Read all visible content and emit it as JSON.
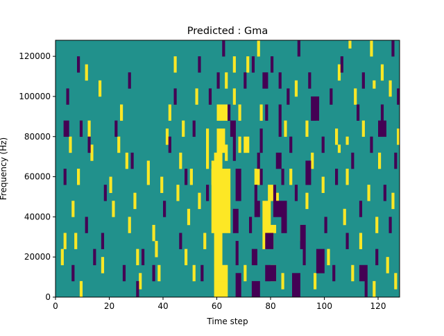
{
  "chart_data": {
    "type": "heatmap",
    "title": "Predicted : Gma",
    "xlabel": "Time step",
    "ylabel": "Frequency (Hz)",
    "xlim": [
      0,
      128
    ],
    "ylim": [
      0,
      128000
    ],
    "x_ticks": [
      0,
      20,
      40,
      60,
      80,
      100,
      120
    ],
    "x_tick_labels": [
      "0",
      "20",
      "40",
      "60",
      "80",
      "100",
      "120"
    ],
    "y_ticks": [
      0,
      20000,
      40000,
      60000,
      80000,
      100000,
      120000
    ],
    "y_tick_labels": [
      "0",
      "20000",
      "40000",
      "60000",
      "80000",
      "100000",
      "120000"
    ],
    "n_time_steps": 128,
    "n_freq_bins": 32,
    "colormap": "viridis",
    "legend": "none",
    "grid": false,
    "class_colors": {
      "background": "#21918c",
      "positive": "#fde725",
      "negative": "#440154"
    },
    "note_encoding": "cells listed as [time_step_start, time_step_end_exclusive, freq_bin_start, freq_bin_end_exclusive]; freq bin k spans k*4000..(k+1)*4000 Hz",
    "yellow_cells": [
      [
        59,
        64,
        0,
        2
      ],
      [
        59,
        64,
        2,
        4
      ],
      [
        59,
        62,
        4,
        18
      ],
      [
        58,
        65,
        8,
        16
      ],
      [
        60,
        63,
        18,
        21
      ],
      [
        58,
        60,
        14,
        17
      ],
      [
        62,
        64,
        22,
        24
      ],
      [
        60,
        62,
        22,
        24
      ],
      [
        63,
        64,
        17,
        19
      ],
      [
        56,
        57,
        16,
        21
      ],
      [
        80,
        82,
        2,
        4
      ],
      [
        78,
        81,
        6,
        8
      ],
      [
        79,
        82,
        12,
        14
      ],
      [
        77,
        80,
        6,
        12
      ],
      [
        80,
        82,
        8,
        9
      ],
      [
        74,
        76,
        14,
        16
      ],
      [
        70,
        72,
        18,
        20
      ],
      [
        82,
        83,
        11,
        13
      ],
      [
        84,
        85,
        1,
        3
      ],
      [
        88,
        89,
        0,
        2
      ],
      [
        30,
        31,
        4,
        6
      ],
      [
        31,
        32,
        1,
        3
      ],
      [
        34,
        35,
        14,
        17
      ],
      [
        36,
        37,
        7,
        9
      ],
      [
        38,
        39,
        2,
        4
      ],
      [
        37,
        38,
        5,
        7
      ],
      [
        39,
        40,
        13,
        15
      ],
      [
        41,
        42,
        19,
        21
      ],
      [
        42,
        43,
        22,
        24
      ],
      [
        44,
        45,
        28,
        30
      ],
      [
        20,
        21,
        13,
        15
      ],
      [
        21,
        22,
        10,
        12
      ],
      [
        23,
        24,
        18,
        20
      ],
      [
        24,
        25,
        22,
        24
      ],
      [
        26,
        27,
        16,
        18
      ],
      [
        27,
        28,
        8,
        10
      ],
      [
        29,
        30,
        11,
        13
      ],
      [
        17,
        18,
        3,
        5
      ],
      [
        16,
        17,
        25,
        27
      ],
      [
        13,
        14,
        17,
        19
      ],
      [
        2,
        3,
        4,
        6
      ],
      [
        3,
        4,
        6,
        8
      ],
      [
        5,
        6,
        18,
        20
      ],
      [
        6,
        7,
        10,
        12
      ],
      [
        7,
        8,
        6,
        8
      ],
      [
        8,
        9,
        14,
        16
      ],
      [
        9,
        10,
        0,
        2
      ],
      [
        11,
        12,
        27,
        29
      ],
      [
        12,
        13,
        20,
        22
      ],
      [
        45,
        46,
        12,
        14
      ],
      [
        46,
        47,
        16,
        18
      ],
      [
        47,
        48,
        20,
        22
      ],
      [
        48,
        49,
        4,
        6
      ],
      [
        49,
        50,
        9,
        11
      ],
      [
        50,
        51,
        14,
        16
      ],
      [
        51,
        52,
        2,
        4
      ],
      [
        52,
        53,
        24,
        26
      ],
      [
        53,
        54,
        11,
        13
      ],
      [
        55,
        56,
        6,
        8
      ],
      [
        63,
        64,
        26,
        28
      ],
      [
        66,
        67,
        24,
        26
      ],
      [
        66,
        67,
        28,
        30
      ],
      [
        68,
        69,
        22,
        24
      ],
      [
        68,
        69,
        18,
        20
      ],
      [
        70,
        71,
        2,
        4
      ],
      [
        71,
        72,
        28,
        30
      ],
      [
        75,
        76,
        30,
        32
      ],
      [
        76,
        77,
        22,
        24
      ],
      [
        85,
        86,
        20,
        22
      ],
      [
        87,
        88,
        14,
        16
      ],
      [
        89,
        90,
        25,
        27
      ],
      [
        91,
        92,
        7,
        9
      ],
      [
        93,
        94,
        11,
        13
      ],
      [
        95,
        96,
        16,
        18
      ],
      [
        96,
        97,
        1,
        3
      ],
      [
        97,
        98,
        22,
        24
      ],
      [
        99,
        100,
        13,
        15
      ],
      [
        101,
        102,
        4,
        6
      ],
      [
        104,
        105,
        19,
        21
      ],
      [
        105,
        106,
        27,
        29
      ],
      [
        107,
        108,
        9,
        11
      ],
      [
        108,
        109,
        14,
        16
      ],
      [
        109,
        110,
        31,
        32
      ],
      [
        110,
        111,
        2,
        4
      ],
      [
        111,
        112,
        24,
        26
      ],
      [
        113,
        114,
        6,
        8
      ],
      [
        114,
        115,
        20,
        22
      ],
      [
        116,
        117,
        12,
        14
      ],
      [
        117,
        118,
        30,
        32
      ],
      [
        118,
        119,
        0,
        2
      ],
      [
        119,
        120,
        8,
        10
      ],
      [
        120,
        121,
        16,
        18
      ],
      [
        121,
        122,
        27,
        29
      ],
      [
        123,
        124,
        3,
        5
      ],
      [
        124,
        125,
        25,
        27
      ],
      [
        125,
        126,
        11,
        13
      ],
      [
        126,
        127,
        1,
        3
      ],
      [
        127,
        128,
        19,
        21
      ],
      [
        105,
        106,
        18,
        19
      ],
      [
        108,
        109,
        19,
        20
      ],
      [
        118,
        119,
        26,
        27
      ],
      [
        93,
        94,
        20,
        22
      ]
    ],
    "purple_cells": [
      [
        67,
        69,
        0,
        3
      ],
      [
        67,
        68,
        4,
        7
      ],
      [
        66,
        68,
        8,
        11
      ],
      [
        67,
        69,
        12,
        16
      ],
      [
        66,
        67,
        17,
        20
      ],
      [
        65,
        67,
        20,
        22
      ],
      [
        73,
        76,
        0,
        2
      ],
      [
        73,
        75,
        4,
        6
      ],
      [
        74,
        76,
        10,
        12
      ],
      [
        74,
        75,
        12,
        14
      ],
      [
        75,
        76,
        16,
        18
      ],
      [
        76,
        77,
        18,
        21
      ],
      [
        78,
        82,
        2,
        4
      ],
      [
        78,
        81,
        6,
        8
      ],
      [
        81,
        82,
        10,
        14
      ],
      [
        82,
        84,
        16,
        18
      ],
      [
        82,
        84,
        10,
        12
      ],
      [
        83,
        84,
        20,
        24
      ],
      [
        83,
        84,
        26,
        28
      ],
      [
        84,
        86,
        8,
        10
      ],
      [
        84,
        86,
        10,
        12
      ],
      [
        84,
        85,
        14,
        16
      ],
      [
        78,
        79,
        22,
        24
      ],
      [
        77,
        79,
        26,
        28
      ],
      [
        88,
        91,
        0,
        3
      ],
      [
        91,
        93,
        6,
        9
      ],
      [
        93,
        95,
        14,
        17
      ],
      [
        95,
        98,
        22,
        25
      ],
      [
        97,
        100,
        3,
        6
      ],
      [
        30,
        31,
        0,
        2
      ],
      [
        32,
        33,
        4,
        6
      ],
      [
        36,
        37,
        2,
        4
      ],
      [
        40,
        41,
        10,
        12
      ],
      [
        42,
        43,
        18,
        20
      ],
      [
        44,
        45,
        24,
        26
      ],
      [
        46,
        47,
        6,
        8
      ],
      [
        48,
        49,
        14,
        16
      ],
      [
        17,
        18,
        6,
        8
      ],
      [
        18,
        19,
        12,
        14
      ],
      [
        22,
        23,
        20,
        22
      ],
      [
        25,
        26,
        2,
        4
      ],
      [
        27,
        28,
        26,
        28
      ],
      [
        28,
        29,
        16,
        18
      ],
      [
        3,
        4,
        14,
        16
      ],
      [
        4,
        5,
        24,
        26
      ],
      [
        6,
        7,
        2,
        4
      ],
      [
        8,
        9,
        28,
        30
      ],
      [
        9,
        10,
        20,
        22
      ],
      [
        11,
        12,
        8,
        10
      ],
      [
        12,
        13,
        18,
        20
      ],
      [
        14,
        15,
        4,
        6
      ],
      [
        51,
        52,
        20,
        22
      ],
      [
        53,
        54,
        28,
        30
      ],
      [
        54,
        55,
        2,
        4
      ],
      [
        56,
        57,
        12,
        14
      ],
      [
        57,
        58,
        24,
        26
      ],
      [
        60,
        61,
        26,
        28
      ],
      [
        62,
        63,
        30,
        32
      ],
      [
        64,
        65,
        22,
        24
      ],
      [
        70,
        71,
        26,
        28
      ],
      [
        72,
        73,
        8,
        10
      ],
      [
        73,
        74,
        28,
        30
      ],
      [
        76,
        77,
        14,
        16
      ],
      [
        80,
        81,
        28,
        30
      ],
      [
        86,
        87,
        24,
        26
      ],
      [
        87,
        88,
        18,
        20
      ],
      [
        89,
        90,
        12,
        14
      ],
      [
        90,
        91,
        30,
        32
      ],
      [
        92,
        93,
        4,
        6
      ],
      [
        94,
        95,
        26,
        28
      ],
      [
        99,
        100,
        18,
        20
      ],
      [
        100,
        101,
        8,
        10
      ],
      [
        102,
        103,
        24,
        26
      ],
      [
        103,
        104,
        2,
        4
      ],
      [
        104,
        105,
        14,
        16
      ],
      [
        106,
        107,
        28,
        30
      ],
      [
        108,
        109,
        6,
        8
      ],
      [
        110,
        111,
        16,
        18
      ],
      [
        112,
        113,
        22,
        24
      ],
      [
        113,
        114,
        10,
        12
      ],
      [
        114,
        115,
        26,
        28
      ],
      [
        115,
        116,
        0,
        2
      ],
      [
        117,
        118,
        18,
        20
      ],
      [
        119,
        120,
        4,
        6
      ],
      [
        121,
        122,
        22,
        24
      ],
      [
        122,
        123,
        12,
        14
      ],
      [
        124,
        125,
        8,
        10
      ],
      [
        125,
        126,
        30,
        32
      ],
      [
        126,
        127,
        16,
        18
      ],
      [
        127,
        128,
        24,
        26
      ],
      [
        113,
        116,
        2,
        4
      ],
      [
        3,
        5,
        20,
        22
      ],
      [
        120,
        123,
        20,
        22
      ]
    ]
  }
}
